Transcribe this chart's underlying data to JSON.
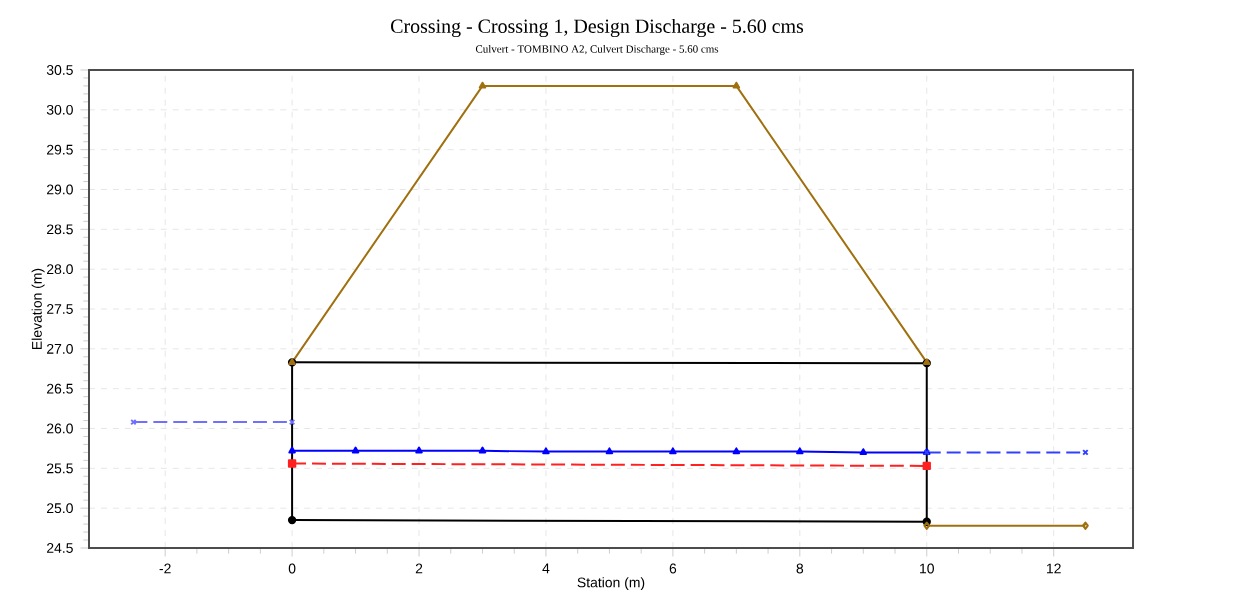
{
  "chart_data": {
    "type": "line",
    "title": "Crossing - Crossing 1, Design Discharge - 5.60 cms",
    "subtitle": "Culvert - TOMBINO A2, Culvert Discharge - 5.60 cms",
    "xlabel": "Station (m)",
    "ylabel": "Elevation (m)",
    "xlim": [
      -3.2,
      13.25
    ],
    "ylim": [
      24.5,
      30.5
    ],
    "xticks": [
      -2,
      0,
      2,
      4,
      6,
      8,
      10,
      12
    ],
    "yticks": [
      24.5,
      {
        "value": 25,
        "label": "25.0"
      },
      25.5,
      {
        "value": 26,
        "label": "26.0"
      },
      26.5,
      {
        "value": 27,
        "label": "27.0"
      },
      27.5,
      {
        "value": 28,
        "label": "28.0"
      },
      28.5,
      {
        "value": 29,
        "label": "29.0"
      },
      29.5,
      {
        "value": 30,
        "label": "30.0"
      },
      30.5
    ],
    "grid": true,
    "series": [
      {
        "color": "#000000",
        "x": [
          0,
          10
        ],
        "values": [
          26.83,
          26.82
        ],
        "marker": "circle",
        "line_style": "solid"
      },
      {
        "color": "#000000",
        "x": [
          0,
          10
        ],
        "values": [
          24.85,
          24.83
        ],
        "marker": "circle",
        "line_style": "solid"
      },
      {
        "color": "#000000",
        "x": [
          0,
          0
        ],
        "values": [
          24.85,
          26.83
        ],
        "marker": "none",
        "line_style": "solid"
      },
      {
        "color": "#000000",
        "x": [
          10,
          10
        ],
        "values": [
          24.83,
          26.82
        ],
        "marker": "none",
        "line_style": "solid"
      },
      {
        "color": "#7070ff",
        "x": [
          -2.5,
          0
        ],
        "values": [
          26.08,
          26.08
        ],
        "marker": "cross",
        "line_style": "dashed"
      },
      {
        "color": "#0000ff",
        "x": [
          0,
          1,
          2,
          3,
          4,
          5,
          6,
          7,
          8,
          9,
          10
        ],
        "values": [
          25.72,
          25.72,
          25.72,
          25.72,
          25.71,
          25.71,
          25.71,
          25.71,
          25.71,
          25.7,
          25.7
        ],
        "marker": "triangle",
        "line_style": "solid"
      },
      {
        "color": "#ff2020",
        "x": [
          0,
          10
        ],
        "values": [
          25.56,
          25.53
        ],
        "marker": "square",
        "line_style": "dashed"
      },
      {
        "color": "#3040ff",
        "x": [
          10,
          12.5
        ],
        "values": [
          25.7,
          25.7
        ],
        "marker": "cross",
        "line_style": "dashed"
      },
      {
        "color": "#a0700f",
        "x": [
          10,
          12.5
        ],
        "values": [
          24.78,
          24.78
        ],
        "marker": "diamond",
        "line_style": "solid"
      },
      {
        "color": "#a0700f",
        "x": [
          0,
          3,
          7,
          10
        ],
        "values": [
          26.83,
          30.3,
          30.3,
          26.83
        ],
        "marker": "triangle",
        "line_style": "solid"
      }
    ]
  }
}
